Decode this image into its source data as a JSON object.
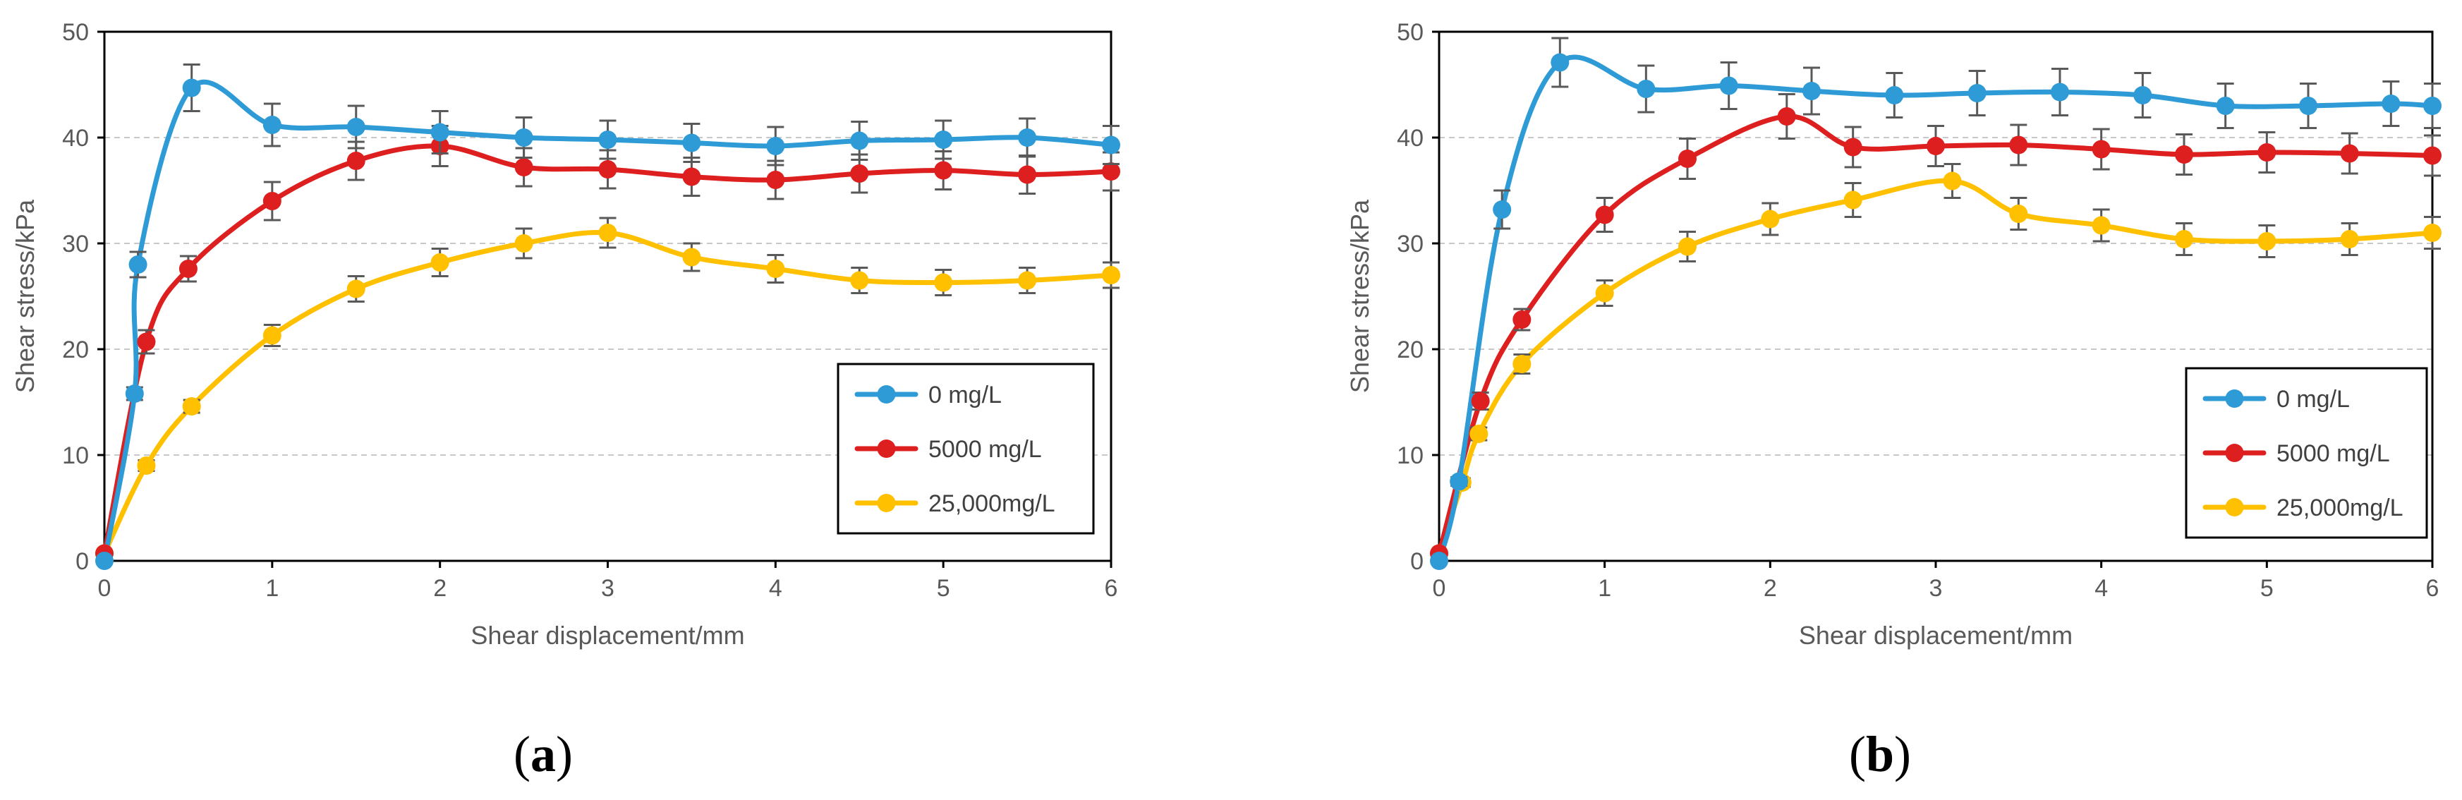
{
  "chart_data": [
    {
      "type": "line",
      "panel": "(a)",
      "panel_letter": "a",
      "xlabel": "Shear displacement/mm",
      "ylabel": "Shear stress/kPa",
      "xlim": [
        0,
        6
      ],
      "ylim": [
        0,
        50
      ],
      "xticks": [
        0,
        1,
        2,
        3,
        4,
        5,
        6
      ],
      "yticks": [
        0,
        10,
        20,
        30,
        40,
        50
      ],
      "grid": "horizontal dashed",
      "legend_position": "bottom-right",
      "series": [
        {
          "name": "0 mg/L",
          "color": "#2E9BD6",
          "x": [
            0,
            0.18,
            0.2,
            0.52,
            1.0,
            1.5,
            2.0,
            2.5,
            3.0,
            3.5,
            4.0,
            4.5,
            5.0,
            5.5,
            6.0
          ],
          "y": [
            0,
            15.8,
            28.0,
            44.7,
            41.2,
            41.0,
            40.5,
            40.0,
            39.8,
            39.5,
            39.2,
            39.7,
            39.8,
            40.0,
            39.3
          ],
          "err": [
            0,
            0.6,
            1.2,
            2.2,
            2.0,
            2.0,
            2.0,
            1.9,
            1.8,
            1.8,
            1.8,
            1.8,
            1.8,
            1.8,
            1.8
          ]
        },
        {
          "name": "5000 mg/L",
          "color": "#DD1F1F",
          "x": [
            0,
            0.25,
            0.5,
            1.0,
            1.5,
            2.0,
            2.5,
            3.0,
            3.5,
            4.0,
            4.5,
            5.0,
            5.5,
            6.0
          ],
          "y": [
            0.7,
            20.7,
            27.6,
            34.0,
            37.8,
            39.2,
            37.2,
            37.0,
            36.3,
            36.0,
            36.6,
            36.9,
            36.5,
            36.8
          ],
          "err": [
            0,
            1.1,
            1.2,
            1.8,
            1.8,
            1.9,
            1.8,
            1.8,
            1.8,
            1.8,
            1.8,
            1.8,
            1.8,
            1.8
          ]
        },
        {
          "name": "25,000mg/L",
          "color": "#FFC000",
          "x": [
            0,
            0.25,
            0.52,
            1.0,
            1.5,
            2.0,
            2.5,
            3.0,
            3.5,
            4.0,
            4.5,
            5.0,
            5.5,
            6.0
          ],
          "y": [
            0.7,
            9.0,
            14.6,
            21.3,
            25.7,
            28.2,
            30.0,
            31.0,
            28.7,
            27.6,
            26.5,
            26.3,
            26.5,
            27.0
          ],
          "err": [
            0,
            0.5,
            0.6,
            1.0,
            1.2,
            1.3,
            1.4,
            1.4,
            1.3,
            1.3,
            1.2,
            1.2,
            1.2,
            1.2
          ]
        }
      ]
    },
    {
      "type": "line",
      "panel": "(b)",
      "panel_letter": "b",
      "xlabel": "Shear displacement/mm",
      "ylabel": "Shear stress/kPa",
      "xlim": [
        0,
        6
      ],
      "ylim": [
        0,
        50
      ],
      "xticks": [
        0,
        1,
        2,
        3,
        4,
        5,
        6
      ],
      "yticks": [
        0,
        10,
        20,
        30,
        40,
        50
      ],
      "grid": "horizontal dashed",
      "legend_position": "bottom-right",
      "series": [
        {
          "name": "0 mg/L",
          "color": "#2E9BD6",
          "x": [
            0,
            0.12,
            0.38,
            0.73,
            1.25,
            1.75,
            2.25,
            2.75,
            3.25,
            3.75,
            4.25,
            4.75,
            5.25,
            5.75,
            6.0
          ],
          "y": [
            0,
            7.5,
            33.2,
            47.1,
            44.6,
            44.9,
            44.4,
            44.0,
            44.2,
            44.3,
            44.0,
            43.0,
            43.0,
            43.2,
            43.0
          ],
          "err": [
            0,
            0.4,
            1.8,
            2.3,
            2.2,
            2.2,
            2.2,
            2.1,
            2.1,
            2.2,
            2.1,
            2.1,
            2.1,
            2.1,
            2.1
          ]
        },
        {
          "name": "5000 mg/L",
          "color": "#DD1F1F",
          "x": [
            0,
            0.25,
            0.5,
            1.0,
            1.5,
            2.1,
            2.5,
            3.0,
            3.5,
            4.0,
            4.5,
            5.0,
            5.5,
            6.0
          ],
          "y": [
            0.7,
            15.1,
            22.8,
            32.7,
            38.0,
            42.0,
            39.1,
            39.2,
            39.3,
            38.9,
            38.4,
            38.6,
            38.5,
            38.3
          ],
          "err": [
            0,
            0.8,
            1.0,
            1.6,
            1.9,
            2.1,
            1.9,
            1.9,
            1.9,
            1.9,
            1.9,
            1.9,
            1.9,
            1.9
          ]
        },
        {
          "name": "25,000mg/L",
          "color": "#FFC000",
          "x": [
            0,
            0.14,
            0.24,
            0.5,
            1.0,
            1.5,
            2.0,
            2.5,
            3.1,
            3.5,
            4.0,
            4.5,
            5.0,
            5.5,
            6.0
          ],
          "y": [
            0.7,
            7.4,
            12.0,
            18.6,
            25.3,
            29.7,
            32.3,
            34.1,
            35.9,
            32.8,
            31.7,
            30.4,
            30.2,
            30.4,
            31.0
          ],
          "err": [
            0,
            0.4,
            0.6,
            0.9,
            1.2,
            1.4,
            1.5,
            1.6,
            1.6,
            1.5,
            1.5,
            1.5,
            1.5,
            1.5,
            1.5
          ]
        }
      ]
    }
  ]
}
